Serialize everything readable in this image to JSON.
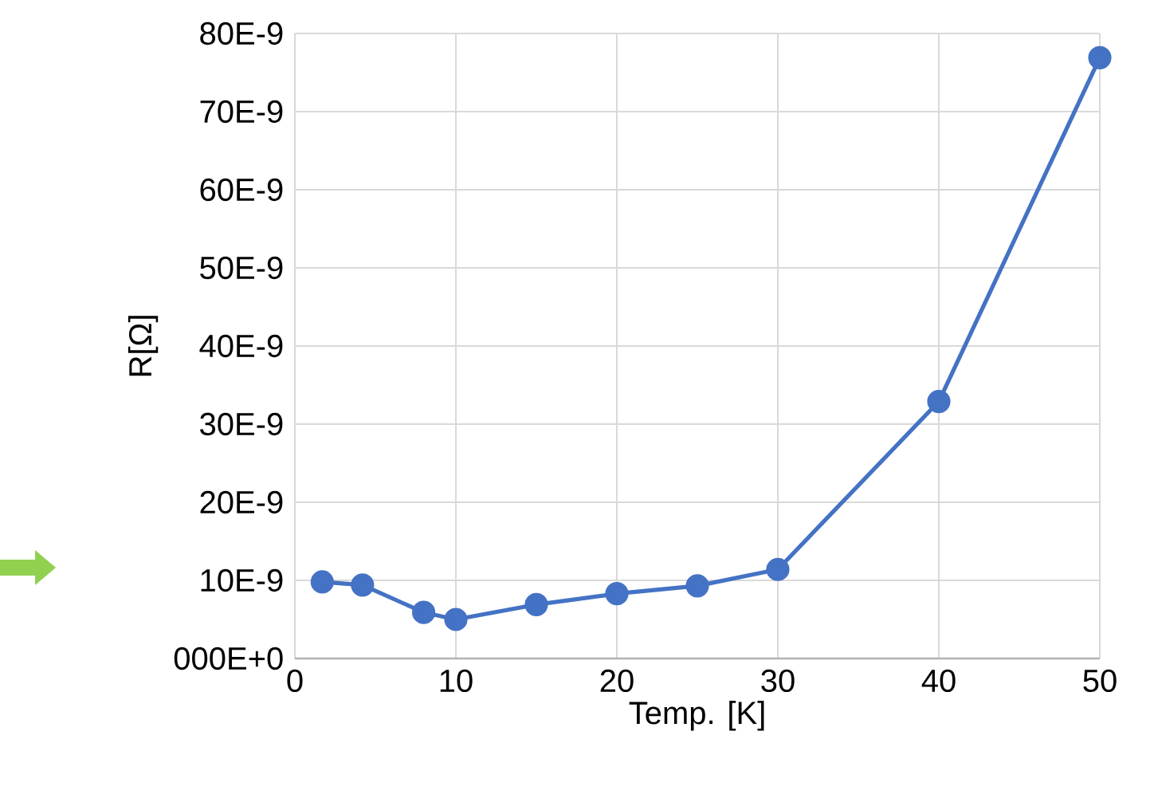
{
  "chart_data": {
    "type": "line",
    "xlabel": "Temp. [K]",
    "ylabel": "R[Ω]",
    "x": [
      1.7,
      4.2,
      8,
      10,
      15,
      20,
      25,
      30,
      40,
      50
    ],
    "values": [
      9.8e-09,
      9.4e-09,
      5.9e-09,
      5e-09,
      6.9e-09,
      8.3e-09,
      9.3e-09,
      1.14e-08,
      3.29e-08,
      7.69e-08
    ],
    "color": "#4472c4",
    "marker": "circle",
    "line_style": "solid",
    "grid": true,
    "xlim": [
      0,
      50
    ],
    "xticks": [
      0,
      10,
      20,
      30,
      40,
      50
    ],
    "ylim": [
      0,
      8e-08
    ],
    "yticks": [
      {
        "value": 0,
        "label": "000E+0"
      },
      {
        "value": 1e-08,
        "label": "10E-9"
      },
      {
        "value": 2e-08,
        "label": "20E-9"
      },
      {
        "value": 3e-08,
        "label": "30E-9"
      },
      {
        "value": 4e-08,
        "label": "40E-9"
      },
      {
        "value": 5e-08,
        "label": "50E-9"
      },
      {
        "value": 6e-08,
        "label": "60E-9"
      },
      {
        "value": 7e-08,
        "label": "70E-9"
      },
      {
        "value": 8e-08,
        "label": "80E-9"
      }
    ]
  }
}
